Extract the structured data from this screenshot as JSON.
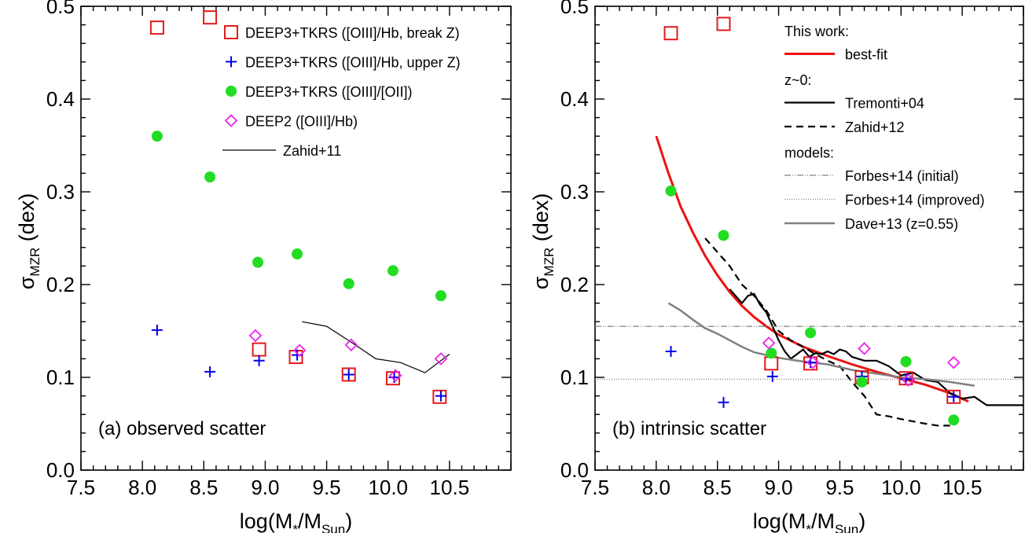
{
  "colors": {
    "break_z": "#e31a1c",
    "upper_z": "#0000ee",
    "o3o2": "#22dd22",
    "deep2": "#ee22ee",
    "best_fit": "#ee1111",
    "dave": "#808080",
    "forbes": "#808080",
    "black": "#000000"
  },
  "chart_data": [
    {
      "type": "scatter",
      "panel": "a",
      "title": "",
      "annotation": "(a) observed scatter",
      "xlabel": "log(M*/MSun)",
      "xlabel_parts": {
        "pre": "log(M",
        "sub1": "*",
        "mid": "/M",
        "sub2": "Sun",
        "post": ")"
      },
      "ylabel": "σMZR (dex)",
      "ylabel_parts": {
        "sym": "σ",
        "sub": "MZR",
        "post": " (dex)"
      },
      "xlim": [
        7.5,
        11.0
      ],
      "ylim": [
        0.0,
        0.5
      ],
      "xticks": [
        "7.5",
        "8.0",
        "8.5",
        "9.0",
        "9.5",
        "10.0",
        "10.5"
      ],
      "yticks": [
        "0.0",
        "0.1",
        "0.2",
        "0.3",
        "0.4",
        "0.5"
      ],
      "grid": false,
      "legend_position": "top-right",
      "series": [
        {
          "name": "DEEP3+TKRS ([OIII]/Hb, break Z)",
          "marker": "square",
          "color_key": "break_z",
          "x": [
            8.12,
            8.55,
            8.95,
            9.25,
            9.68,
            10.04,
            10.42
          ],
          "y": [
            0.477,
            0.488,
            0.13,
            0.122,
            0.103,
            0.099,
            0.079
          ]
        },
        {
          "name": "DEEP3+TKRS ([OIII]/Hb, upper Z)",
          "marker": "plus",
          "color_key": "upper_z",
          "x": [
            8.12,
            8.55,
            8.95,
            9.26,
            9.68,
            10.05,
            10.43
          ],
          "y": [
            0.151,
            0.106,
            0.118,
            0.124,
            0.103,
            0.1,
            0.08
          ]
        },
        {
          "name": "DEEP3+TKRS ([OIII]/[OII])",
          "marker": "circle",
          "color_key": "o3o2",
          "x": [
            8.12,
            8.55,
            8.94,
            9.26,
            9.68,
            10.04,
            10.43
          ],
          "y": [
            0.36,
            0.316,
            0.224,
            0.233,
            0.201,
            0.215,
            0.188
          ]
        },
        {
          "name": "DEEP2 ([OIII]/Hb)",
          "marker": "diamond",
          "color_key": "deep2",
          "x": [
            8.92,
            9.28,
            9.7,
            10.06,
            10.43
          ],
          "y": [
            0.145,
            0.129,
            0.135,
            0.102,
            0.12
          ]
        },
        {
          "name": "Zahid+11",
          "marker": "line",
          "color_key": "black",
          "dash": "solid",
          "width": 1.2,
          "x": [
            9.3,
            9.5,
            9.7,
            9.9,
            10.1,
            10.3,
            10.5
          ],
          "y": [
            0.16,
            0.155,
            0.138,
            0.12,
            0.116,
            0.105,
            0.125
          ]
        }
      ],
      "legend": [
        {
          "label": "DEEP3+TKRS ([OIII]/Hb, break Z)",
          "series": 0
        },
        {
          "label": "DEEP3+TKRS ([OIII]/Hb, upper Z)",
          "series": 1
        },
        {
          "label": "DEEP3+TKRS ([OIII]/[OII])",
          "series": 2
        },
        {
          "label": "DEEP2 ([OIII]/Hb)",
          "series": 3
        },
        {
          "label": "Zahid+11",
          "series": 4
        }
      ]
    },
    {
      "type": "scatter",
      "panel": "b",
      "title": "",
      "annotation": "(b) intrinsic scatter",
      "xlabel": "log(M*/MSun)",
      "xlabel_parts": {
        "pre": "log(M",
        "sub1": "*",
        "mid": "/M",
        "sub2": "Sun",
        "post": ")"
      },
      "ylabel": "σMZR (dex)",
      "ylabel_parts": {
        "sym": "σ",
        "sub": "MZR",
        "post": " (dex)"
      },
      "xlim": [
        7.5,
        11.0
      ],
      "ylim": [
        0.0,
        0.5
      ],
      "xticks": [
        "7.5",
        "8.0",
        "8.5",
        "9.0",
        "9.5",
        "10.0",
        "10.5"
      ],
      "yticks": [
        "0.0",
        "0.1",
        "0.2",
        "0.3",
        "0.4",
        "0.5"
      ],
      "grid": false,
      "legend_position": "top-right",
      "series": [
        {
          "name": "",
          "marker": "square",
          "color_key": "break_z",
          "x": [
            8.12,
            8.55,
            8.94,
            9.26,
            9.68,
            10.04,
            10.43
          ],
          "y": [
            0.471,
            0.481,
            0.115,
            0.115,
            0.1,
            0.099,
            0.079
          ]
        },
        {
          "name": "",
          "marker": "plus",
          "color_key": "upper_z",
          "x": [
            8.12,
            8.55,
            8.95,
            9.26,
            9.68,
            10.04,
            10.43
          ],
          "y": [
            0.128,
            0.073,
            0.101,
            0.116,
            0.101,
            0.098,
            0.079
          ]
        },
        {
          "name": "",
          "marker": "circle",
          "color_key": "o3o2",
          "x": [
            8.12,
            8.55,
            8.94,
            9.26,
            9.68,
            10.04,
            10.43
          ],
          "y": [
            0.301,
            0.253,
            0.126,
            0.148,
            0.095,
            0.117,
            0.054
          ]
        },
        {
          "name": "",
          "marker": "diamond",
          "color_key": "deep2",
          "x": [
            8.92,
            9.28,
            9.7,
            10.06,
            10.43
          ],
          "y": [
            0.137,
            0.116,
            0.131,
            0.097,
            0.116
          ]
        },
        {
          "name": "best-fit",
          "marker": "line",
          "color_key": "best_fit",
          "dash": "solid",
          "width": 3,
          "x": [
            8.0,
            8.1,
            8.2,
            8.3,
            8.4,
            8.5,
            8.6,
            8.7,
            8.8,
            8.9,
            9.0,
            9.2,
            9.4,
            9.6,
            9.8,
            10.0,
            10.2,
            10.4,
            10.55
          ],
          "y": [
            0.36,
            0.32,
            0.284,
            0.256,
            0.231,
            0.21,
            0.192,
            0.177,
            0.165,
            0.155,
            0.146,
            0.133,
            0.123,
            0.114,
            0.106,
            0.099,
            0.092,
            0.083,
            0.074
          ]
        },
        {
          "name": "Tremonti+04",
          "marker": "line",
          "color_key": "black",
          "dash": "solid",
          "width": 2.2,
          "x": [
            8.6,
            8.7,
            8.75,
            8.8,
            8.85,
            8.9,
            8.95,
            9.0,
            9.05,
            9.1,
            9.15,
            9.2,
            9.25,
            9.3,
            9.35,
            9.4,
            9.45,
            9.5,
            9.55,
            9.6,
            9.7,
            9.8,
            9.9,
            10.0,
            10.1,
            10.2,
            10.3,
            10.4,
            10.5,
            10.6,
            10.7,
            10.8,
            11.0
          ],
          "y": [
            0.195,
            0.18,
            0.188,
            0.19,
            0.178,
            0.17,
            0.155,
            0.14,
            0.128,
            0.12,
            0.125,
            0.13,
            0.122,
            0.126,
            0.125,
            0.128,
            0.125,
            0.13,
            0.128,
            0.122,
            0.118,
            0.118,
            0.112,
            0.102,
            0.105,
            0.097,
            0.095,
            0.083,
            0.077,
            0.079,
            0.07,
            0.07,
            0.07
          ]
        },
        {
          "name": "Zahid+12",
          "marker": "line",
          "color_key": "black",
          "dash": "dashed",
          "width": 2.2,
          "x": [
            8.4,
            8.5,
            8.6,
            8.7,
            8.8,
            8.9,
            9.0,
            9.1,
            9.2,
            9.3,
            9.4,
            9.5,
            9.6,
            9.7,
            9.8,
            9.9,
            10.0,
            10.2,
            10.3,
            10.4
          ],
          "y": [
            0.25,
            0.235,
            0.22,
            0.2,
            0.188,
            0.172,
            0.15,
            0.14,
            0.133,
            0.125,
            0.118,
            0.112,
            0.095,
            0.08,
            0.06,
            0.058,
            0.055,
            0.05,
            0.048,
            0.048
          ]
        },
        {
          "name": "Forbes+14 (initial)",
          "marker": "hline",
          "color_key": "forbes",
          "dash": "dashdotdot",
          "width": 1.2,
          "x": [
            7.5,
            11.0
          ],
          "y": [
            0.155,
            0.155
          ]
        },
        {
          "name": "Forbes+14 (improved)",
          "marker": "hline",
          "color_key": "forbes",
          "dash": "dotted",
          "width": 1.2,
          "x": [
            7.5,
            11.0
          ],
          "y": [
            0.098,
            0.098
          ]
        },
        {
          "name": "Dave+13 (z=0.55)",
          "marker": "line",
          "color_key": "dave",
          "dash": "solid",
          "width": 2.5,
          "x": [
            8.1,
            8.2,
            8.3,
            8.4,
            8.5,
            8.6,
            8.7,
            8.8,
            8.9,
            9.0,
            9.2,
            9.4,
            9.6,
            9.8,
            10.0,
            10.2,
            10.4,
            10.6
          ],
          "y": [
            0.18,
            0.172,
            0.162,
            0.153,
            0.147,
            0.14,
            0.133,
            0.127,
            0.124,
            0.121,
            0.117,
            0.114,
            0.108,
            0.104,
            0.1,
            0.098,
            0.095,
            0.091
          ]
        }
      ],
      "legend_groups": [
        {
          "heading": "This work:",
          "items": [
            {
              "label": "best-fit",
              "series": 4
            }
          ]
        },
        {
          "heading": "z~0:",
          "items": [
            {
              "label": "Tremonti+04",
              "series": 5
            },
            {
              "label": "Zahid+12",
              "series": 6
            }
          ]
        },
        {
          "heading": "models:",
          "items": [
            {
              "label": "Forbes+14 (initial)",
              "series": 7
            },
            {
              "label": "Forbes+14 (improved)",
              "series": 8
            },
            {
              "label": "Dave+13 (z=0.55)",
              "series": 9
            }
          ]
        }
      ]
    }
  ]
}
